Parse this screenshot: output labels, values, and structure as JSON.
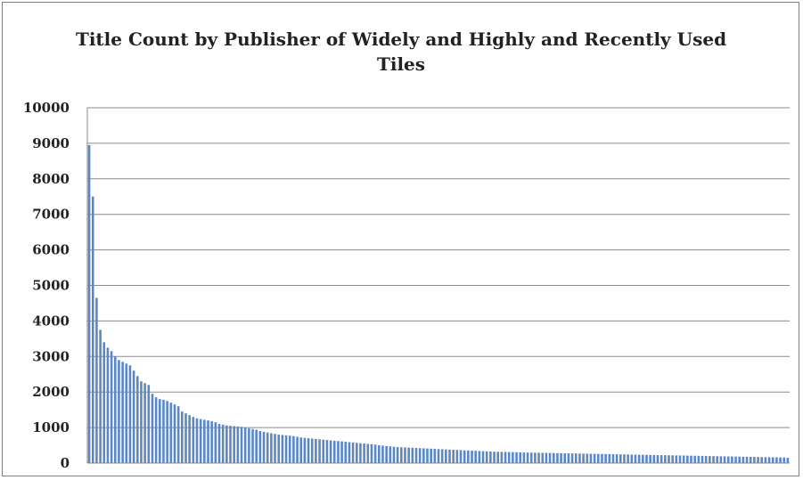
{
  "chart_data": {
    "type": "bar",
    "title": "Title Count by Publisher of Widely and Highly and Recently Used Tiles",
    "xlabel": "",
    "ylabel": "",
    "ylim": [
      0,
      10000
    ],
    "yticks": [
      "10000",
      "9000",
      "8000",
      "7000",
      "6000",
      "5000",
      "4000",
      "3000",
      "2000",
      "1000",
      "0"
    ],
    "grid": true,
    "color": "#5b87c4",
    "values": [
      8950,
      7500,
      4650,
      3750,
      3400,
      3250,
      3150,
      3000,
      2900,
      2850,
      2800,
      2750,
      2600,
      2450,
      2300,
      2250,
      2200,
      1950,
      1850,
      1800,
      1780,
      1750,
      1700,
      1650,
      1600,
      1450,
      1400,
      1350,
      1300,
      1260,
      1240,
      1220,
      1200,
      1180,
      1150,
      1100,
      1080,
      1060,
      1050,
      1040,
      1030,
      1020,
      1000,
      980,
      960,
      940,
      900,
      880,
      860,
      840,
      820,
      800,
      790,
      780,
      770,
      760,
      740,
      720,
      710,
      700,
      690,
      680,
      670,
      660,
      650,
      640,
      630,
      620,
      610,
      600,
      590,
      580,
      570,
      560,
      550,
      540,
      530,
      520,
      500,
      490,
      480,
      470,
      460,
      450,
      445,
      440,
      435,
      430,
      425,
      420,
      415,
      410,
      405,
      400,
      395,
      390,
      385,
      380,
      375,
      370,
      365,
      360,
      355,
      350,
      345,
      340,
      335,
      330,
      325,
      320,
      318,
      316,
      314,
      312,
      310,
      305,
      300,
      298,
      296,
      294,
      292,
      290,
      288,
      286,
      284,
      282,
      280,
      278,
      276,
      274,
      272,
      270,
      268,
      266,
      264,
      262,
      260,
      258,
      256,
      254,
      252,
      250,
      248,
      246,
      244,
      242,
      240,
      238,
      236,
      234,
      232,
      230,
      228,
      226,
      224,
      222,
      220,
      218,
      216,
      214,
      212,
      210,
      208,
      206,
      204,
      202,
      200,
      198,
      196,
      194,
      192,
      190,
      188,
      186,
      184,
      182,
      180,
      178,
      176,
      174,
      172,
      170,
      168,
      166,
      164,
      162,
      160,
      158,
      150
    ]
  }
}
